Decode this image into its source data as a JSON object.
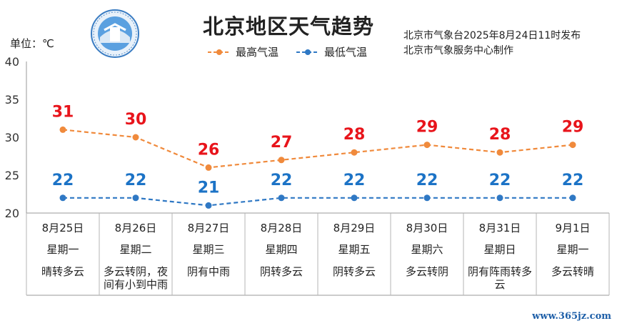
{
  "header": {
    "title": "北京地区天气趋势",
    "unit_label": "单位：℃",
    "publisher_line1": "北京市气象台2025年8月24日11时发布",
    "publisher_line2": "北京市气象服务中心制作",
    "watermark": "www.365jz.com"
  },
  "colors": {
    "high": "#f08a3c",
    "low": "#2f78c4",
    "high_label": "#e8141b",
    "low_label": "#1c73c6"
  },
  "chart_data": {
    "type": "line",
    "title": "北京地区天气趋势",
    "ylabel": "单位：℃",
    "ylim": [
      20,
      40
    ],
    "yticks": [
      20,
      25,
      30,
      35,
      40
    ],
    "grid": false,
    "legend_position": "top-center",
    "categories": [
      "8月25日",
      "8月26日",
      "8月27日",
      "8月28日",
      "8月29日",
      "8月30日",
      "8月31日",
      "9月1日"
    ],
    "series": [
      {
        "name": "最高气温",
        "values": [
          31,
          30,
          26,
          27,
          28,
          29,
          28,
          29
        ]
      },
      {
        "name": "最低气温",
        "values": [
          22,
          22,
          21,
          22,
          22,
          22,
          22,
          22
        ]
      }
    ]
  },
  "table": {
    "weekdays": [
      "星期一",
      "星期二",
      "星期三",
      "星期四",
      "星期五",
      "星期六",
      "星期日",
      "星期一"
    ],
    "weather": [
      [
        "晴转多云"
      ],
      [
        "多云转阴，夜",
        "间有小到中雨"
      ],
      [
        "阴有中雨"
      ],
      [
        "阴转多云"
      ],
      [
        "阴转多云"
      ],
      [
        "多云转阴"
      ],
      [
        "阴有阵雨转多",
        "云"
      ],
      [
        "多云转晴"
      ]
    ]
  }
}
